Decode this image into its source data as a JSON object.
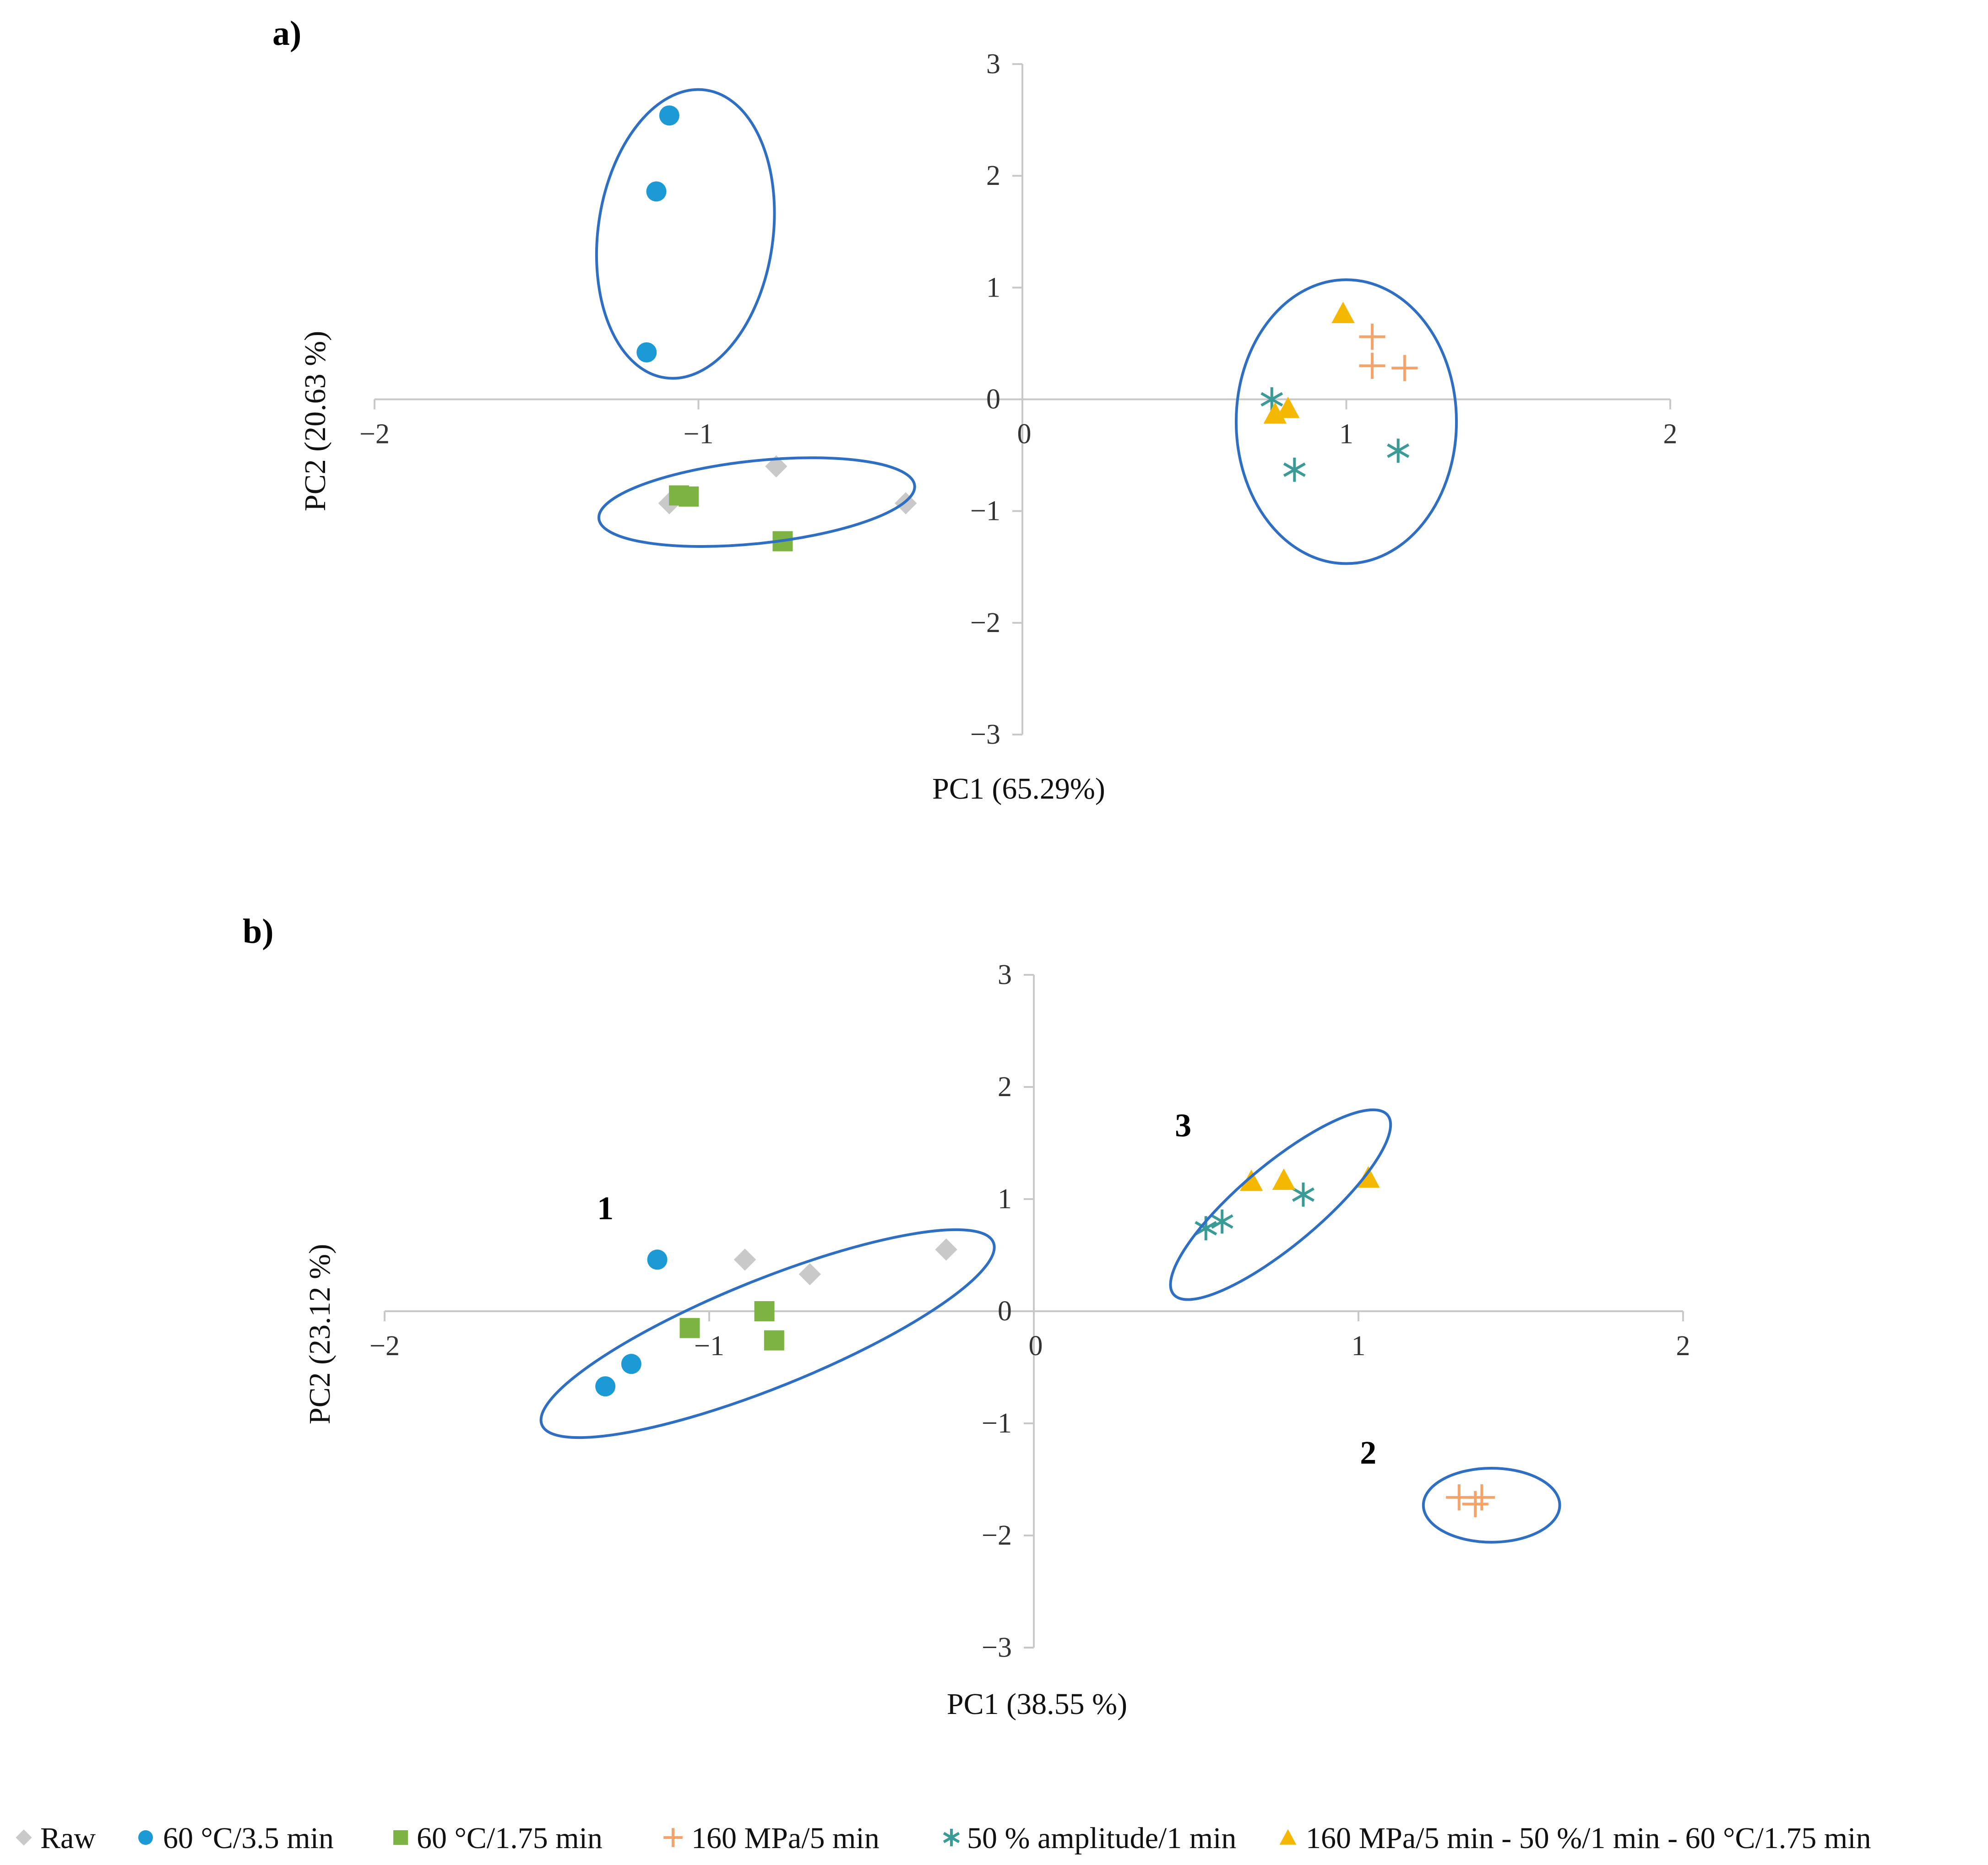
{
  "legend": [
    {
      "key": "raw",
      "label": "Raw",
      "marker": "diamond",
      "color": "#C9C9C9"
    },
    {
      "key": "t60_35",
      "label": "60 °C/3.5 min",
      "marker": "circle",
      "color": "#1B9AD6"
    },
    {
      "key": "t60_175",
      "label": "60 °C/1.75 min",
      "marker": "square",
      "color": "#7CB342"
    },
    {
      "key": "hpp",
      "label": "160 MPa/5 min",
      "marker": "plus",
      "color": "#F4A46A"
    },
    {
      "key": "us",
      "label": "50 % amplitude/1 min",
      "marker": "star",
      "color": "#3A9A96"
    },
    {
      "key": "combo",
      "label": "160 MPa/5 min - 50 %/1 min - 60 °C/1.75 min",
      "marker": "triangle",
      "color": "#F5B800"
    }
  ],
  "chart_data": [
    {
      "panel": "a)",
      "type": "scatter",
      "xlabel": "PC1 (65.29%)",
      "ylabel": "PC2 (20.63 %)",
      "xlim": [
        -2,
        2
      ],
      "ylim": [
        -3,
        3
      ],
      "xticks": [
        "−2",
        "−1",
        "0",
        "1",
        "2"
      ],
      "yticks": [
        "3",
        "2",
        "1",
        "0",
        "−1",
        "−2",
        "−3"
      ],
      "series": [
        {
          "key": "raw",
          "points": [
            [
              -1.09,
              -0.93
            ],
            [
              -0.76,
              -0.6
            ],
            [
              -0.36,
              -0.93
            ]
          ]
        },
        {
          "key": "t60_35",
          "points": [
            [
              -1.09,
              2.54
            ],
            [
              -1.13,
              1.86
            ],
            [
              -1.16,
              0.42
            ]
          ]
        },
        {
          "key": "t60_175",
          "points": [
            [
              -1.06,
              -0.86
            ],
            [
              -1.03,
              -0.87
            ],
            [
              -0.74,
              -1.27
            ]
          ]
        },
        {
          "key": "hpp",
          "points": [
            [
              1.08,
              0.56
            ],
            [
              1.08,
              0.3
            ],
            [
              1.18,
              0.28
            ]
          ]
        },
        {
          "key": "us",
          "points": [
            [
              0.77,
              0.0
            ],
            [
              0.84,
              -0.63
            ],
            [
              1.16,
              -0.46
            ]
          ]
        },
        {
          "key": "combo",
          "points": [
            [
              0.99,
              0.77
            ],
            [
              0.82,
              -0.08
            ],
            [
              0.78,
              -0.13
            ]
          ]
        }
      ],
      "ellipses": [
        {
          "cx": -1.04,
          "cy": 1.48,
          "rx": 0.27,
          "ry": 1.3,
          "angle": 8
        },
        {
          "cx": -0.82,
          "cy": -0.92,
          "rx": 0.49,
          "ry": 0.37,
          "angle": -6
        },
        {
          "cx": 1.0,
          "cy": -0.2,
          "rx": 0.34,
          "ry": 1.27,
          "angle": 0
        }
      ],
      "cluster_labels": []
    },
    {
      "panel": "b)",
      "type": "scatter",
      "xlabel": "PC1 (38.55 %)",
      "ylabel": "PC2 (23.12 %)",
      "xlim": [
        -2,
        2
      ],
      "ylim": [
        -3,
        3
      ],
      "xticks": [
        "−2",
        "−1",
        "0",
        "1",
        "2"
      ],
      "yticks": [
        "3",
        "2",
        "1",
        "0",
        "−1",
        "−2",
        "−3"
      ],
      "series": [
        {
          "key": "raw",
          "points": [
            [
              -0.89,
              0.46
            ],
            [
              -0.69,
              0.33
            ],
            [
              -0.27,
              0.55
            ]
          ]
        },
        {
          "key": "t60_35",
          "points": [
            [
              -1.16,
              0.46
            ],
            [
              -1.24,
              -0.47
            ],
            [
              -1.32,
              -0.67
            ]
          ]
        },
        {
          "key": "t60_175",
          "points": [
            [
              -1.06,
              -0.15
            ],
            [
              -0.83,
              0.0
            ],
            [
              -0.8,
              -0.26
            ]
          ]
        },
        {
          "key": "hpp",
          "points": [
            [
              1.31,
              -1.66
            ],
            [
              1.36,
              -1.72
            ],
            [
              1.38,
              -1.66
            ]
          ]
        },
        {
          "key": "us",
          "points": [
            [
              0.53,
              0.74
            ],
            [
              0.58,
              0.8
            ],
            [
              0.83,
              1.04
            ]
          ]
        },
        {
          "key": "combo",
          "points": [
            [
              0.67,
              1.16
            ],
            [
              0.77,
              1.17
            ],
            [
              1.03,
              1.19
            ]
          ]
        }
      ],
      "ellipses": [
        {
          "cx": -0.82,
          "cy": -0.2,
          "rx": 0.75,
          "ry": 0.48,
          "angle": -22
        },
        {
          "cx": 1.41,
          "cy": -1.73,
          "rx": 0.21,
          "ry": 0.33,
          "angle": 0
        },
        {
          "cx": 0.76,
          "cy": 0.95,
          "rx": 0.43,
          "ry": 0.36,
          "angle": -40
        }
      ],
      "cluster_labels": [
        {
          "text": "1",
          "x": -1.32,
          "y": 0.82
        },
        {
          "text": "2",
          "x": 1.03,
          "y": -1.36
        },
        {
          "text": "3",
          "x": 0.46,
          "y": 1.56
        }
      ]
    }
  ]
}
